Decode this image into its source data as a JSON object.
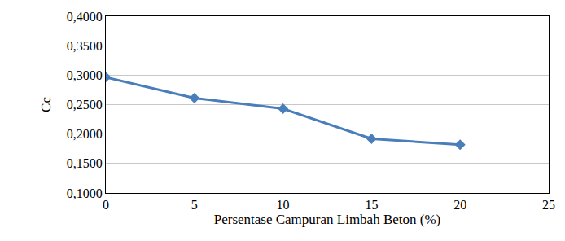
{
  "chart_data": {
    "type": "line",
    "x_label": "Persentase Campuran Limbah Beton (%)",
    "y_label": "Cc",
    "x": [
      0,
      5,
      10,
      15,
      20
    ],
    "values": [
      0.2965,
      0.261,
      0.243,
      0.192,
      0.182
    ],
    "color": "#4a7ebb",
    "marker": "diamond",
    "xlim": [
      0,
      25
    ],
    "xticks": [
      0,
      5,
      10,
      15,
      20,
      25
    ],
    "ylim": [
      0.1,
      0.4
    ],
    "yticks": [
      {
        "value": 0.1,
        "label": "0,1000"
      },
      {
        "value": 0.15,
        "label": "0,1500"
      },
      {
        "value": 0.2,
        "label": "0,2000"
      },
      {
        "value": 0.25,
        "label": "0,2500"
      },
      {
        "value": 0.3,
        "label": "0,3000"
      },
      {
        "value": 0.35,
        "label": "0,3500"
      },
      {
        "value": 0.4,
        "label": "0,4000"
      }
    ],
    "grid": true
  }
}
